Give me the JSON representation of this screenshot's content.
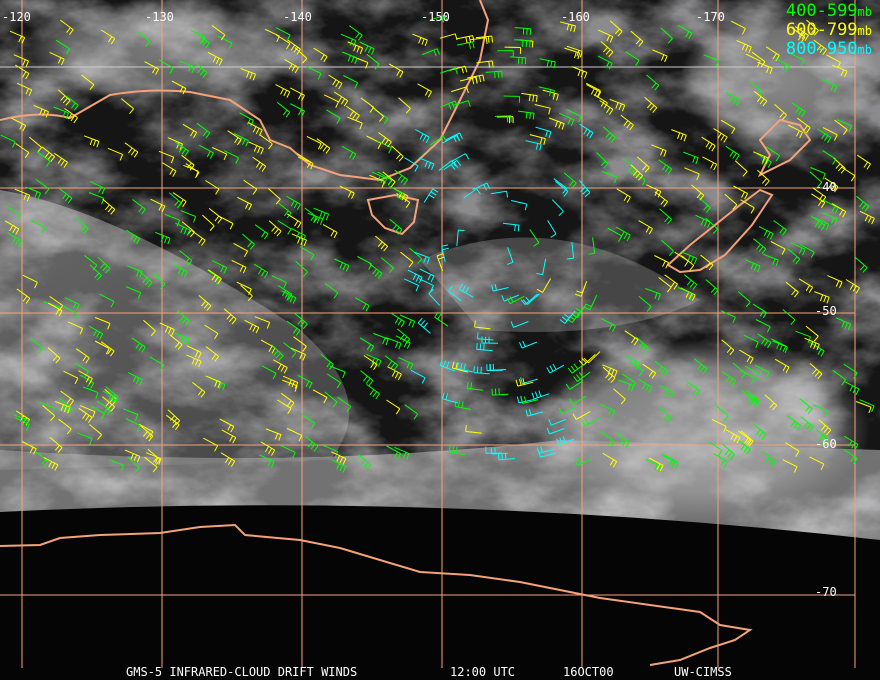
{
  "map": {
    "longitude_labels": [
      "-120",
      "-130",
      "-140",
      "-150",
      "-160",
      "-170"
    ],
    "latitude_labels": [
      "-40",
      "-50",
      "-60",
      "-70"
    ],
    "grid_color": "#f4a27a",
    "coastline_color": "#f4a27a"
  },
  "legend": [
    {
      "range": "400-599",
      "unit": "mb",
      "color": "#00ff00"
    },
    {
      "range": "600-799",
      "unit": "mb",
      "color": "#ffff00"
    },
    {
      "range": "800-950",
      "unit": "mb",
      "color": "#00ffff"
    }
  ],
  "footer": {
    "product": "GMS-5 INFRARED-CLOUD DRIFT WINDS",
    "time": "12:00 UTC",
    "date": "16OCT00",
    "source": "UW-CIMSS"
  }
}
